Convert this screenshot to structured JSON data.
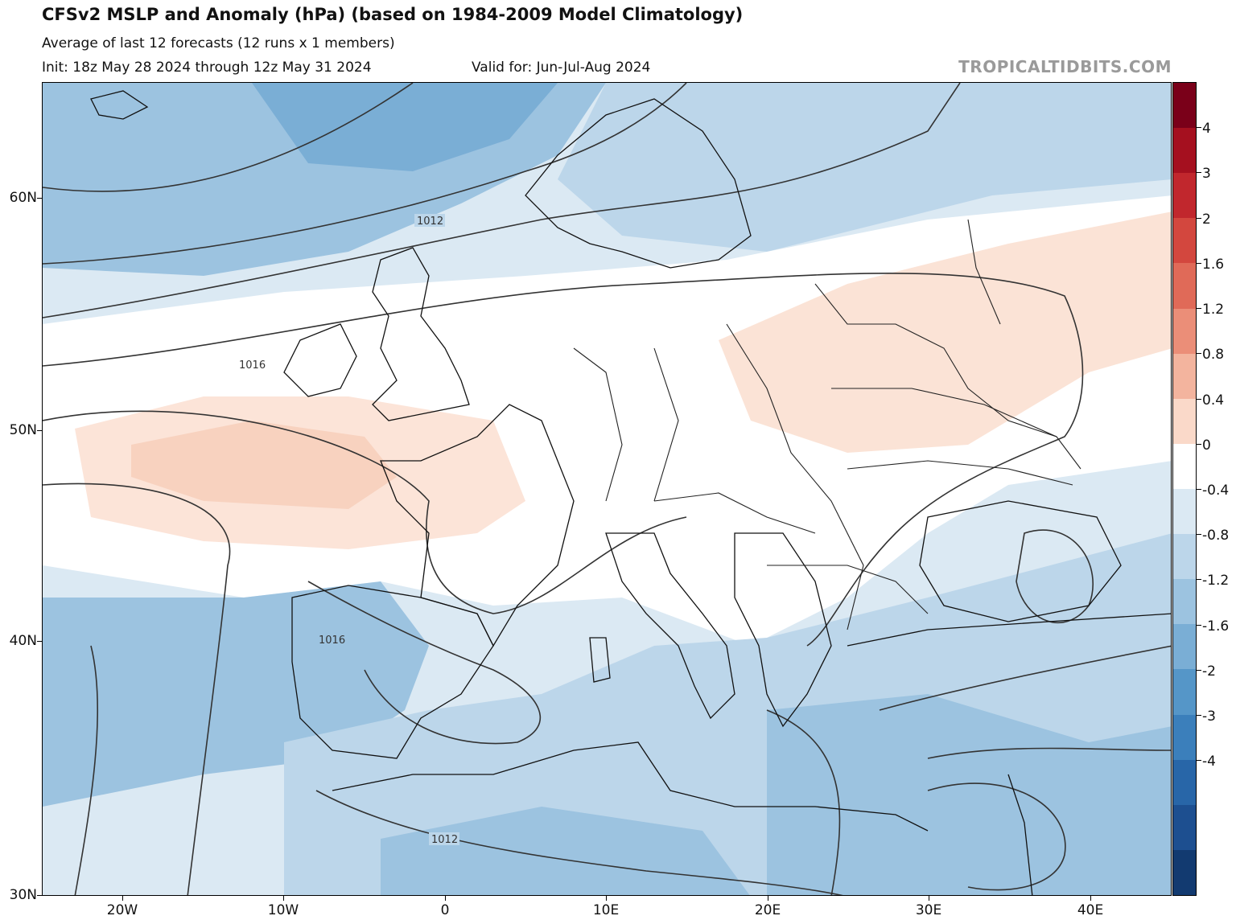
{
  "header": {
    "title": "CFSv2 MSLP and Anomaly (hPa) (based on 1984-2009 Model Climatology)",
    "subtitle": "Average of last 12 forecasts (12 runs x 1 members)",
    "init": "Init: 18z May 28 2024 through 12z May 31 2024",
    "valid": "Valid for: Jun-Jul-Aug 2024",
    "brand": "TROPICALTIDBITS.COM"
  },
  "axes": {
    "lat_labels": [
      "60N",
      "50N",
      "40N",
      "30N"
    ],
    "lon_labels": [
      "20W",
      "10W",
      "0",
      "10E",
      "20E",
      "30E",
      "40E"
    ]
  },
  "isobar_labels": [
    "1012",
    "1016",
    "1016",
    "1012"
  ],
  "colorbar": {
    "labels": [
      "4",
      "3",
      "2",
      "1.6",
      "1.2",
      "0.8",
      "0.4",
      "0",
      "-0.4",
      "-0.8",
      "-1.2",
      "-1.6",
      "-2",
      "-3",
      "-4"
    ],
    "colors": [
      "#7a0019",
      "#a5101f",
      "#c1272d",
      "#d3473e",
      "#e06a58",
      "#eb8e78",
      "#f3b49e",
      "#fad9c9",
      "#ffffff",
      "#dbe9f3",
      "#bcd6ea",
      "#9cc3e0",
      "#7aaed5",
      "#5596c8",
      "#3b7fbb",
      "#2866a8",
      "#1d4f90",
      "#123a70"
    ]
  }
}
